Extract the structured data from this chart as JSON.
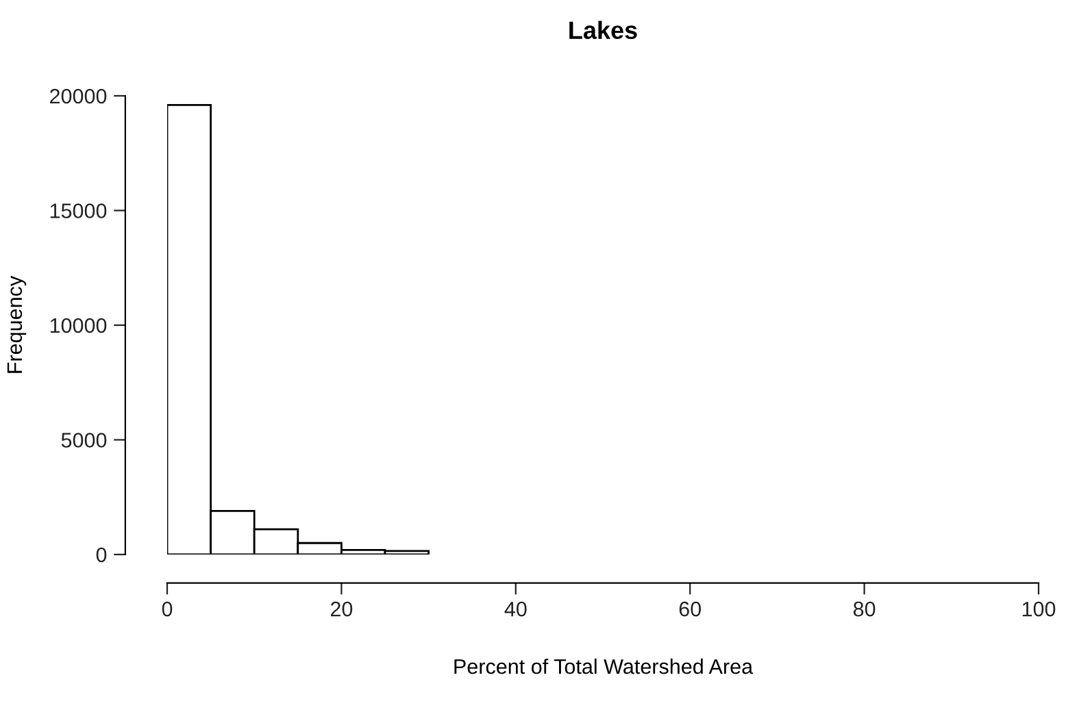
{
  "chart_data": {
    "type": "histogram",
    "title": "Lakes",
    "xlabel": "Percent of Total Watershed Area",
    "ylabel": "Frequency",
    "bins": [
      0,
      5,
      10,
      15,
      20,
      25,
      30,
      35,
      40,
      45,
      50,
      55,
      60,
      65,
      70,
      75,
      80,
      85,
      90,
      95,
      100
    ],
    "values": [
      19600,
      1900,
      1100,
      500,
      200,
      150,
      0,
      0,
      0,
      0,
      0,
      0,
      0,
      0,
      0,
      0,
      0,
      0,
      0,
      0
    ],
    "color": "#ffffff",
    "xlim": [
      0,
      100
    ],
    "xticks": [
      0,
      20,
      40,
      60,
      80,
      100
    ],
    "ylim": [
      0,
      20000
    ],
    "yticks": [
      0,
      5000,
      10000,
      15000,
      20000
    ],
    "grid": false
  }
}
